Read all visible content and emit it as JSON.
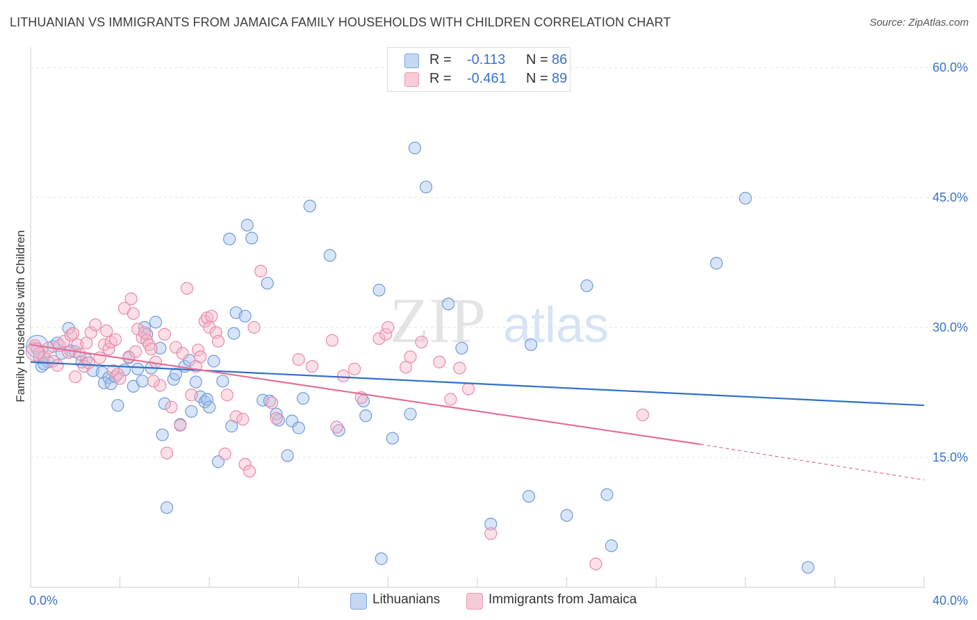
{
  "title": "LITHUANIAN VS IMMIGRANTS FROM JAMAICA FAMILY HOUSEHOLDS WITH CHILDREN CORRELATION CHART",
  "source": "Source: ZipAtlas.com",
  "watermark": {
    "zip": "ZIP",
    "atlas": "atlas"
  },
  "legend": {
    "r_label": "R =",
    "n_label": "N =",
    "entries": [
      {
        "r": "-0.113",
        "n": "86"
      },
      {
        "r": "-0.461",
        "n": "89"
      }
    ]
  },
  "colors": {
    "blue_fill": "#a9c6ef",
    "blue_stroke": "#6f9bd8",
    "blue_line": "#2f6fc9",
    "pink_fill": "#f6bacb",
    "pink_stroke": "#e98aa6",
    "pink_line": "#e56c96",
    "axis_label": "#3a73c9"
  },
  "chart_data": {
    "type": "scatter",
    "title": "LITHUANIAN VS IMMIGRANTS FROM JAMAICA FAMILY HOUSEHOLDS WITH CHILDREN CORRELATION CHART",
    "ylabel": "Family Households with Children",
    "xlabel": "",
    "xlim": [
      0,
      40
    ],
    "ylim": [
      0,
      60
    ],
    "x_tick_labels": [
      {
        "value": 0,
        "label": "0.0%"
      },
      {
        "value": 40,
        "label": "40.0%"
      }
    ],
    "y_tick_labels": [
      {
        "value": 15,
        "label": "15.0%"
      },
      {
        "value": 30,
        "label": "30.0%"
      },
      {
        "value": 45,
        "label": "45.0%"
      },
      {
        "value": 60,
        "label": "60.0%"
      }
    ],
    "series": [
      {
        "name": "Lithuanians",
        "r": -0.113,
        "n": 86,
        "trend": {
          "x0": 0,
          "y0": 26.0,
          "x1": 40,
          "y1": 21.0
        },
        "points": [
          [
            0.3,
            27.5
          ],
          [
            0.4,
            26.5
          ],
          [
            0.5,
            25.5
          ],
          [
            0.8,
            26.0
          ],
          [
            1.0,
            27.8
          ],
          [
            1.2,
            28.2
          ],
          [
            1.4,
            27.0
          ],
          [
            1.7,
            29.9
          ],
          [
            1.8,
            27.3
          ],
          [
            2.0,
            27.2
          ],
          [
            2.3,
            26.0
          ],
          [
            2.5,
            26.3
          ],
          [
            2.8,
            25.0
          ],
          [
            3.2,
            24.8
          ],
          [
            3.3,
            23.6
          ],
          [
            3.5,
            24.2
          ],
          [
            3.6,
            23.5
          ],
          [
            3.8,
            24.3
          ],
          [
            3.9,
            21.0
          ],
          [
            4.2,
            25.1
          ],
          [
            4.4,
            26.5
          ],
          [
            4.6,
            23.2
          ],
          [
            4.8,
            25.2
          ],
          [
            5.0,
            23.8
          ],
          [
            5.1,
            30.0
          ],
          [
            5.2,
            29.2
          ],
          [
            5.4,
            25.3
          ],
          [
            5.6,
            30.6
          ],
          [
            5.8,
            27.6
          ],
          [
            5.9,
            17.6
          ],
          [
            6.0,
            21.2
          ],
          [
            6.1,
            9.2
          ],
          [
            6.4,
            24.0
          ],
          [
            6.5,
            24.6
          ],
          [
            6.7,
            18.8
          ],
          [
            6.9,
            25.5
          ],
          [
            7.1,
            26.2
          ],
          [
            7.2,
            20.3
          ],
          [
            7.4,
            23.7
          ],
          [
            7.6,
            22.0
          ],
          [
            7.8,
            21.4
          ],
          [
            7.9,
            21.7
          ],
          [
            8.0,
            20.8
          ],
          [
            8.2,
            26.1
          ],
          [
            8.4,
            14.5
          ],
          [
            8.6,
            23.8
          ],
          [
            8.9,
            40.2
          ],
          [
            9.0,
            18.6
          ],
          [
            9.1,
            29.3
          ],
          [
            9.2,
            31.7
          ],
          [
            9.6,
            31.3
          ],
          [
            9.7,
            41.8
          ],
          [
            9.9,
            40.3
          ],
          [
            10.4,
            21.6
          ],
          [
            10.6,
            35.1
          ],
          [
            10.7,
            21.5
          ],
          [
            11.0,
            20.0
          ],
          [
            11.1,
            19.3
          ],
          [
            11.5,
            15.2
          ],
          [
            11.7,
            19.2
          ],
          [
            12.0,
            18.4
          ],
          [
            12.2,
            21.8
          ],
          [
            12.5,
            44.0
          ],
          [
            13.4,
            38.3
          ],
          [
            13.8,
            18.1
          ],
          [
            14.9,
            21.5
          ],
          [
            15.0,
            19.8
          ],
          [
            15.6,
            34.3
          ],
          [
            15.7,
            3.3
          ],
          [
            16.2,
            17.2
          ],
          [
            17.0,
            20.0
          ],
          [
            17.2,
            50.7
          ],
          [
            17.7,
            46.2
          ],
          [
            18.7,
            32.7
          ],
          [
            19.3,
            27.6
          ],
          [
            20.6,
            7.3
          ],
          [
            22.3,
            10.5
          ],
          [
            22.4,
            28.0
          ],
          [
            24.0,
            8.3
          ],
          [
            24.9,
            34.8
          ],
          [
            25.8,
            10.7
          ],
          [
            26.0,
            4.8
          ],
          [
            30.7,
            37.4
          ],
          [
            32.0,
            44.9
          ],
          [
            34.8,
            2.3
          ],
          [
            0.6,
            25.8
          ]
        ]
      },
      {
        "name": "Immigrants from Jamaica",
        "r": -0.461,
        "n": 89,
        "trend": {
          "x0": 0,
          "y0": 28.0,
          "x1": 30.0,
          "y1": 16.5,
          "dash_x1": 40,
          "dash_y1": 12.4
        },
        "points": [
          [
            0.2,
            27.9
          ],
          [
            0.4,
            27.0
          ],
          [
            0.6,
            26.6
          ],
          [
            0.8,
            27.6
          ],
          [
            1.0,
            26.1
          ],
          [
            1.2,
            25.6
          ],
          [
            1.3,
            27.9
          ],
          [
            1.5,
            28.4
          ],
          [
            1.7,
            27.1
          ],
          [
            1.8,
            29.1
          ],
          [
            1.9,
            29.3
          ],
          [
            2.0,
            24.3
          ],
          [
            2.1,
            28.0
          ],
          [
            2.2,
            26.9
          ],
          [
            2.4,
            25.5
          ],
          [
            2.5,
            28.2
          ],
          [
            2.6,
            25.9
          ],
          [
            2.7,
            29.4
          ],
          [
            2.9,
            30.3
          ],
          [
            3.1,
            26.5
          ],
          [
            3.3,
            28.0
          ],
          [
            3.5,
            27.5
          ],
          [
            3.6,
            28.3
          ],
          [
            3.7,
            25.0
          ],
          [
            3.8,
            28.6
          ],
          [
            3.9,
            24.6
          ],
          [
            4.0,
            24.1
          ],
          [
            4.2,
            32.2
          ],
          [
            4.4,
            26.6
          ],
          [
            4.5,
            33.3
          ],
          [
            4.6,
            31.6
          ],
          [
            4.8,
            29.8
          ],
          [
            5.0,
            28.8
          ],
          [
            5.1,
            29.4
          ],
          [
            5.2,
            28.5
          ],
          [
            5.3,
            28.0
          ],
          [
            5.4,
            27.5
          ],
          [
            5.6,
            26.0
          ],
          [
            5.8,
            23.3
          ],
          [
            6.0,
            29.2
          ],
          [
            6.1,
            15.5
          ],
          [
            6.3,
            20.8
          ],
          [
            6.5,
            27.7
          ],
          [
            6.7,
            18.7
          ],
          [
            7.0,
            34.5
          ],
          [
            7.2,
            22.2
          ],
          [
            7.4,
            25.5
          ],
          [
            7.5,
            27.4
          ],
          [
            7.6,
            26.6
          ],
          [
            7.8,
            30.7
          ],
          [
            7.9,
            31.1
          ],
          [
            8.0,
            30.0
          ],
          [
            8.1,
            31.3
          ],
          [
            8.3,
            29.4
          ],
          [
            8.4,
            28.4
          ],
          [
            8.7,
            15.4
          ],
          [
            8.8,
            22.2
          ],
          [
            9.2,
            19.7
          ],
          [
            9.5,
            19.4
          ],
          [
            9.6,
            14.2
          ],
          [
            9.8,
            13.4
          ],
          [
            10.0,
            30.0
          ],
          [
            10.3,
            36.5
          ],
          [
            10.8,
            21.3
          ],
          [
            11.0,
            19.5
          ],
          [
            12.0,
            26.3
          ],
          [
            12.6,
            25.5
          ],
          [
            13.5,
            28.5
          ],
          [
            13.7,
            18.5
          ],
          [
            14.0,
            24.4
          ],
          [
            14.5,
            25.2
          ],
          [
            14.8,
            21.9
          ],
          [
            15.6,
            28.7
          ],
          [
            15.9,
            29.2
          ],
          [
            16.0,
            30.0
          ],
          [
            16.8,
            25.4
          ],
          [
            17.0,
            26.6
          ],
          [
            17.5,
            28.3
          ],
          [
            18.3,
            26.0
          ],
          [
            18.8,
            21.7
          ],
          [
            19.2,
            25.3
          ],
          [
            19.6,
            22.9
          ],
          [
            20.6,
            6.2
          ],
          [
            25.3,
            2.7
          ],
          [
            27.4,
            19.9
          ],
          [
            4.7,
            27.2
          ],
          [
            3.4,
            29.6
          ],
          [
            6.8,
            27.0
          ],
          [
            5.5,
            23.8
          ]
        ]
      }
    ]
  }
}
